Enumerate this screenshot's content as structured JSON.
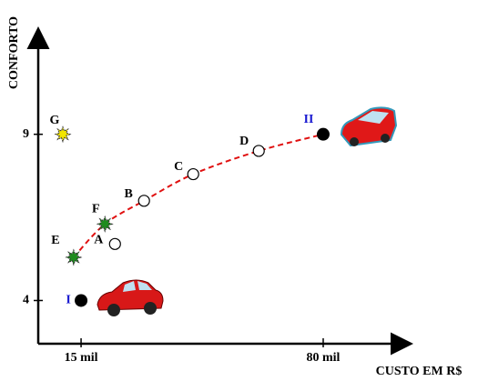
{
  "chart_data": {
    "type": "scatter",
    "ylabel": "CONFORTO",
    "xlabel": "CUSTO EM R$",
    "xlim": [
      3.5,
      102
    ],
    "ylim": [
      2.7,
      12
    ],
    "xticks": [
      {
        "value": 15,
        "label": "15 mil"
      },
      {
        "value": 80,
        "label": "80 mil"
      }
    ],
    "yticks": [
      4,
      9
    ],
    "points": [
      {
        "label": "I",
        "x": 15,
        "y": 4,
        "marker": "filled",
        "color": "#000000",
        "label_color": "#1a1ad0"
      },
      {
        "label": "E",
        "x": 13,
        "y": 5.3,
        "marker": "star",
        "color": "#1e8c1e",
        "label_color": "#000000"
      },
      {
        "label": "A",
        "x": 24.1,
        "y": 5.7,
        "marker": "open",
        "color": "#000000",
        "label_color": "#000000"
      },
      {
        "label": "F",
        "x": 21.4,
        "y": 6.3,
        "marker": "star",
        "color": "#1e8c1e",
        "label_color": "#000000"
      },
      {
        "label": "B",
        "x": 31.9,
        "y": 7.0,
        "marker": "open",
        "color": "#000000",
        "label_color": "#000000"
      },
      {
        "label": "C",
        "x": 45.1,
        "y": 7.8,
        "marker": "open",
        "color": "#000000",
        "label_color": "#000000"
      },
      {
        "label": "D",
        "x": 62.7,
        "y": 8.5,
        "marker": "open",
        "color": "#000000",
        "label_color": "#000000"
      },
      {
        "label": "II",
        "x": 80,
        "y": 9,
        "marker": "filled",
        "color": "#000000",
        "label_color": "#1a1ad0"
      },
      {
        "label": "G",
        "x": 10.1,
        "y": 9,
        "marker": "star",
        "color": "#f2e600",
        "label_color": "#000000"
      }
    ],
    "curve": {
      "color": "#e01010",
      "x": [
        13,
        21.4,
        31.9,
        45.1,
        62.7,
        80
      ],
      "y": [
        5.3,
        6.3,
        7.0,
        7.8,
        8.5,
        9
      ]
    }
  }
}
